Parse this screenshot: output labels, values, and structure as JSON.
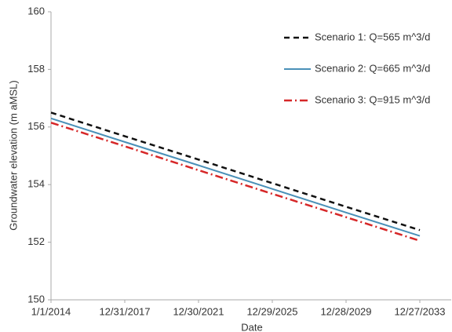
{
  "chart_data": {
    "type": "line",
    "x_label": "Date",
    "y_label": "Groundwater elevation (m aMSL)",
    "categories": [
      "1/1/2014",
      "12/31/2017",
      "12/30/2021",
      "12/29/2025",
      "12/28/2029",
      "12/27/2033"
    ],
    "series": [
      {
        "name": "Scenario 1: Q=565 m^3/d",
        "color": "#111111",
        "dash": "7,5",
        "values": [
          156.5,
          155.68,
          154.87,
          154.05,
          153.23,
          152.42
        ]
      },
      {
        "name": "Scenario 2: Q=665 m^3/d",
        "color": "#4a90b8",
        "dash": "none",
        "values": [
          156.3,
          155.48,
          154.67,
          153.85,
          153.03,
          152.22
        ]
      },
      {
        "name": "Scenario 3: Q=915 m^3/d",
        "color": "#d62728",
        "dash": "10,4,2,4",
        "values": [
          156.15,
          155.33,
          154.5,
          153.68,
          152.87,
          152.05
        ]
      }
    ],
    "ylim": [
      150,
      160
    ],
    "yticks": [
      150,
      152,
      154,
      156,
      158,
      160
    ],
    "grid": false,
    "legend": "upper right"
  }
}
